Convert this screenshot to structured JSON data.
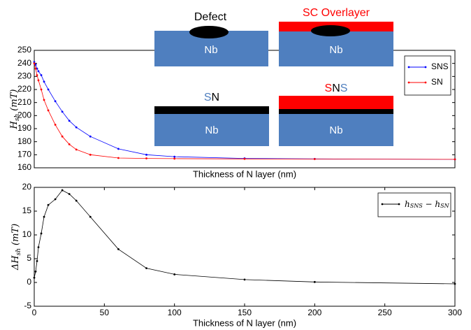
{
  "chart_data": [
    {
      "type": "line",
      "xlabel": "Thickness of N layer (nm)",
      "ylabel": {
        "symbol": "H",
        "subscript": "sh",
        "unit": "(mT)"
      },
      "x": [
        0,
        1,
        2,
        3,
        5,
        7,
        10,
        15,
        20,
        25,
        30,
        40,
        60,
        80,
        100,
        150,
        200,
        300
      ],
      "series": [
        {
          "name": "SNS",
          "color": "#0000ff",
          "values": [
            241,
            239,
            236,
            234,
            231,
            226,
            220,
            211,
            203,
            196,
            191,
            184,
            174.5,
            170,
            168.5,
            167.2,
            166.8,
            166.5
          ]
        },
        {
          "name": "SN",
          "color": "#ff0000",
          "values": [
            240,
            236,
            231,
            227,
            220,
            212,
            204,
            193,
            184,
            178,
            174,
            170,
            167.5,
            167.2,
            167,
            166.8,
            166.7,
            166.5
          ]
        }
      ],
      "xlim": [
        0,
        300
      ],
      "ylim": [
        160,
        250
      ],
      "yticks": [
        160,
        170,
        180,
        190,
        200,
        210,
        220,
        230,
        240,
        250
      ],
      "legend": "upper right"
    },
    {
      "type": "line",
      "xlabel": "Thickness of N layer (nm)",
      "ylabel": {
        "symbol": "ΔH",
        "subscript": "sh",
        "unit": "(mT)"
      },
      "x": [
        0,
        1,
        2,
        3,
        5,
        7,
        10,
        15,
        20,
        25,
        30,
        40,
        60,
        80,
        100,
        150,
        200,
        300
      ],
      "series": [
        {
          "name": {
            "a": "h",
            "a_sub": "SNS",
            "op": " − ",
            "b": "h",
            "b_sub": "SN"
          },
          "color": "#000000",
          "values": [
            1.0,
            2.3,
            4.5,
            7.4,
            10.3,
            13.8,
            16.3,
            17.5,
            19.4,
            18.6,
            17.2,
            13.8,
            7.0,
            3.0,
            1.7,
            0.6,
            0.1,
            -0.3
          ]
        }
      ],
      "xlim": [
        0,
        300
      ],
      "ylim": [
        -5,
        20
      ],
      "xticks": [
        0,
        50,
        100,
        150,
        200,
        250,
        300
      ],
      "yticks": [
        -5,
        0,
        5,
        10,
        15,
        20
      ],
      "legend": "upper right"
    }
  ],
  "diagram": {
    "defect": "Defect",
    "overlayer": "SC Overlayer",
    "substrate": "Nb",
    "sn": [
      "S",
      "N"
    ],
    "sns": [
      "S",
      "N",
      "S"
    ]
  }
}
